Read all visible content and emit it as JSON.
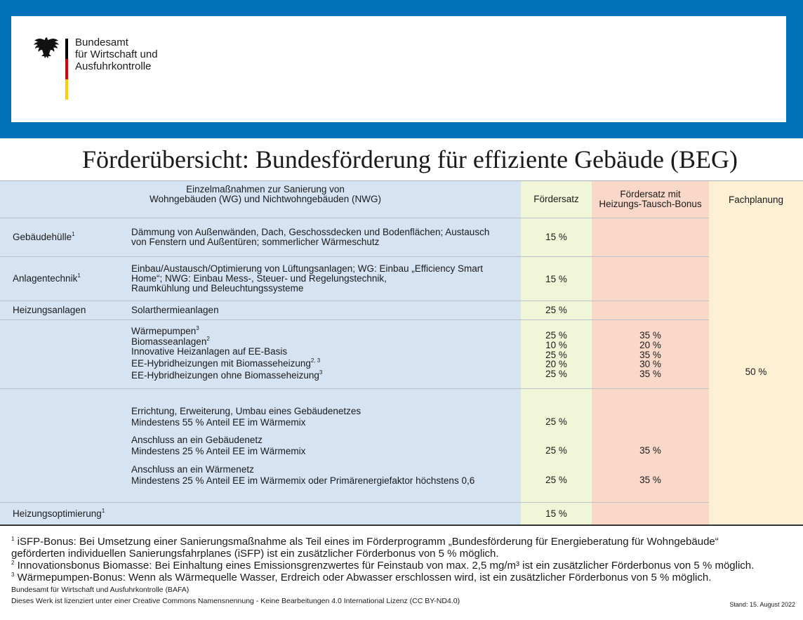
{
  "logo": {
    "lines": [
      "Bundesamt",
      "für Wirtschaft und",
      "Ausfuhrkontrolle"
    ]
  },
  "title": "Förderübersicht: Bundesförderung für effiziente Gebäude (BEG)",
  "table": {
    "header": {
      "measures": [
        "Einzelmaßnahmen zur Sanierung von",
        "Wohngebäuden (WG) und Nichtwohngebäuden (NWG)"
      ],
      "rate": "Fördersatz",
      "bonus": [
        "Fördersatz mit",
        "Heizungs-Tausch-Bonus"
      ],
      "planning": "Fachplanung"
    },
    "planning_rate": "50 %",
    "rows": [
      {
        "label": "Gebäudehülle",
        "label_sup": "1",
        "items": [
          {
            "lines": [
              "Dämmung von Außenwänden, Dach, Geschossdecken und Bodenflächen; Austausch",
              "von Fenstern und Außentüren; sommerlicher Wärmeschutz"
            ],
            "rate": "15 %"
          }
        ]
      },
      {
        "label": "Anlagentechnik",
        "label_sup": "1",
        "items": [
          {
            "lines": [
              "Einbau/Austausch/Optimierung von Lüftungsanlagen; WG: Einbau „Efficiency Smart",
              "Home“; NWG: Einbau Mess-, Steuer- und Regelungstechnik,",
              "Raumkühlung und Beleuchtungssysteme"
            ],
            "rate": "15 %"
          }
        ]
      },
      {
        "label": "Heizungsanlagen",
        "items": [
          {
            "lines": [
              "Solarthermieanlagen"
            ],
            "rate": "25 %"
          }
        ]
      },
      {
        "items": [
          {
            "lines": [
              "Wärmepumpen"
            ],
            "sup": "3",
            "rate": "25 %",
            "bonus": "35 %"
          },
          {
            "lines": [
              "Biomasseanlagen"
            ],
            "sup": "2",
            "rate": "10 %",
            "bonus": "20 %"
          },
          {
            "lines": [
              "Innovative Heizanlagen auf EE-Basis"
            ],
            "rate": "25 %",
            "bonus": "35 %"
          },
          {
            "lines": [
              "EE-Hybridheizungen mit Biomasseheizung"
            ],
            "sup": "2, 3",
            "rate": "20 %",
            "bonus": "30 %"
          },
          {
            "lines": [
              "EE-Hybridheizungen ohne Biomasseheizung"
            ],
            "sup": "3",
            "rate": "25 %",
            "bonus": "35 %"
          }
        ]
      },
      {
        "items": [
          {
            "lines": [
              "Errichtung, Erweiterung, Umbau eines Gebäudenetzes",
              "Mindestens 55 % Anteil EE im Wärmemix"
            ],
            "rate": "25 %"
          },
          {
            "lines": [
              "Anschluss an ein Gebäudenetz",
              "Mindestens 25 % Anteil EE im Wärmemix"
            ],
            "rate": "25 %",
            "bonus": "35 %"
          },
          {
            "lines": [
              "Anschluss an ein Wärmenetz",
              "Mindestens 25 % Anteil EE im Wärmemix oder Primärenergiefaktor höchstens 0,6"
            ],
            "rate": "25 %",
            "bonus": "35 %"
          }
        ]
      },
      {
        "label": "Heizungsoptimierung",
        "label_sup": "1",
        "items": [
          {
            "lines": [],
            "rate": "15 %"
          }
        ]
      }
    ]
  },
  "footnotes": [
    {
      "mark": "1",
      "lines": [
        "iSFP-Bonus: Bei Umsetzung einer Sanierungsmaßnahme als Teil eines im Förderprogramm „Bundesförderung für Energieberatung für Wohngebäude“",
        "geförderten individuellen Sanierungsfahrplanes (iSFP) ist ein zusätzlicher Förderbonus von 5 % möglich."
      ]
    },
    {
      "mark": "2",
      "lines": [
        "Innovationsbonus Biomasse: Bei Einhaltung eines Emissionsgrenzwertes für Feinstaub von max. 2,5 mg/m³ ist ein zusätzlicher Förderbonus von 5 % möglich."
      ]
    },
    {
      "mark": "3",
      "lines": [
        "Wärmepumpen-Bonus: Wenn als Wärmequelle Wasser, Erdreich oder Abwasser erschlossen wird, ist ein zusätzlicher Förderbonus von 5 % möglich."
      ]
    }
  ],
  "credits": [
    "Bundesamt für Wirtschaft und Ausfuhrkontrolle (BAFA)",
    "Dieses Werk ist lizenziert unter einer Creative Commons Namensnennung - Keine Bearbeitungen 4.0 International Lizenz (CC BY-ND4.0)"
  ],
  "date": "Stand: 15. August 2022"
}
